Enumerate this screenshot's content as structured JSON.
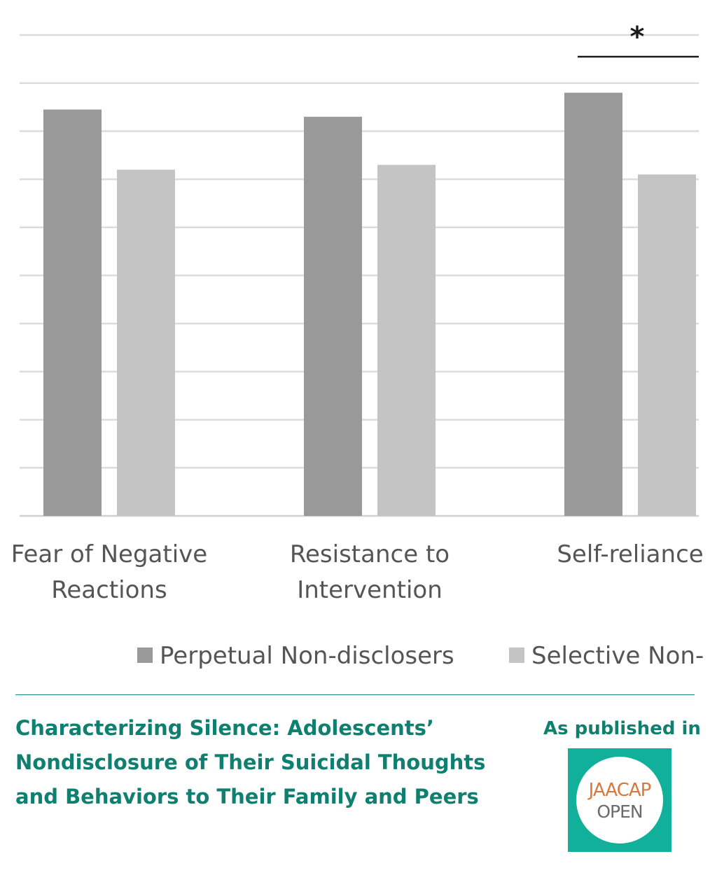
{
  "chart_data": {
    "type": "bar",
    "categories": [
      [
        "Fear of Negative",
        "Reactions"
      ],
      [
        "Resistance to",
        "Intervention"
      ],
      [
        "Self-reliance",
        ""
      ]
    ],
    "series": [
      {
        "name": "Perpetual Non-disclosers",
        "values": [
          8.45,
          8.3,
          8.8
        ]
      },
      {
        "name": "Selective Non-",
        "values": [
          7.2,
          7.3,
          7.1
        ]
      }
    ],
    "ylim": [
      0,
      10
    ],
    "grid": true,
    "legend": "bottom",
    "significance": {
      "category": 2,
      "marker": "*"
    },
    "colors": {
      "perpetual": "#999999",
      "selective": "#c4c4c4",
      "grid": "#dcdcdc",
      "text": "#555555"
    }
  },
  "footer": {
    "title": "Characterizing Silence: Adolescents’\nNondisclosure of Their Suicidal Thoughts\nand Behaviors to Their Family and Peers",
    "published_label": "As published in",
    "logo": {
      "line1": "JAACAP",
      "line2": "OPEN",
      "bg_color": "#10b09a"
    }
  }
}
